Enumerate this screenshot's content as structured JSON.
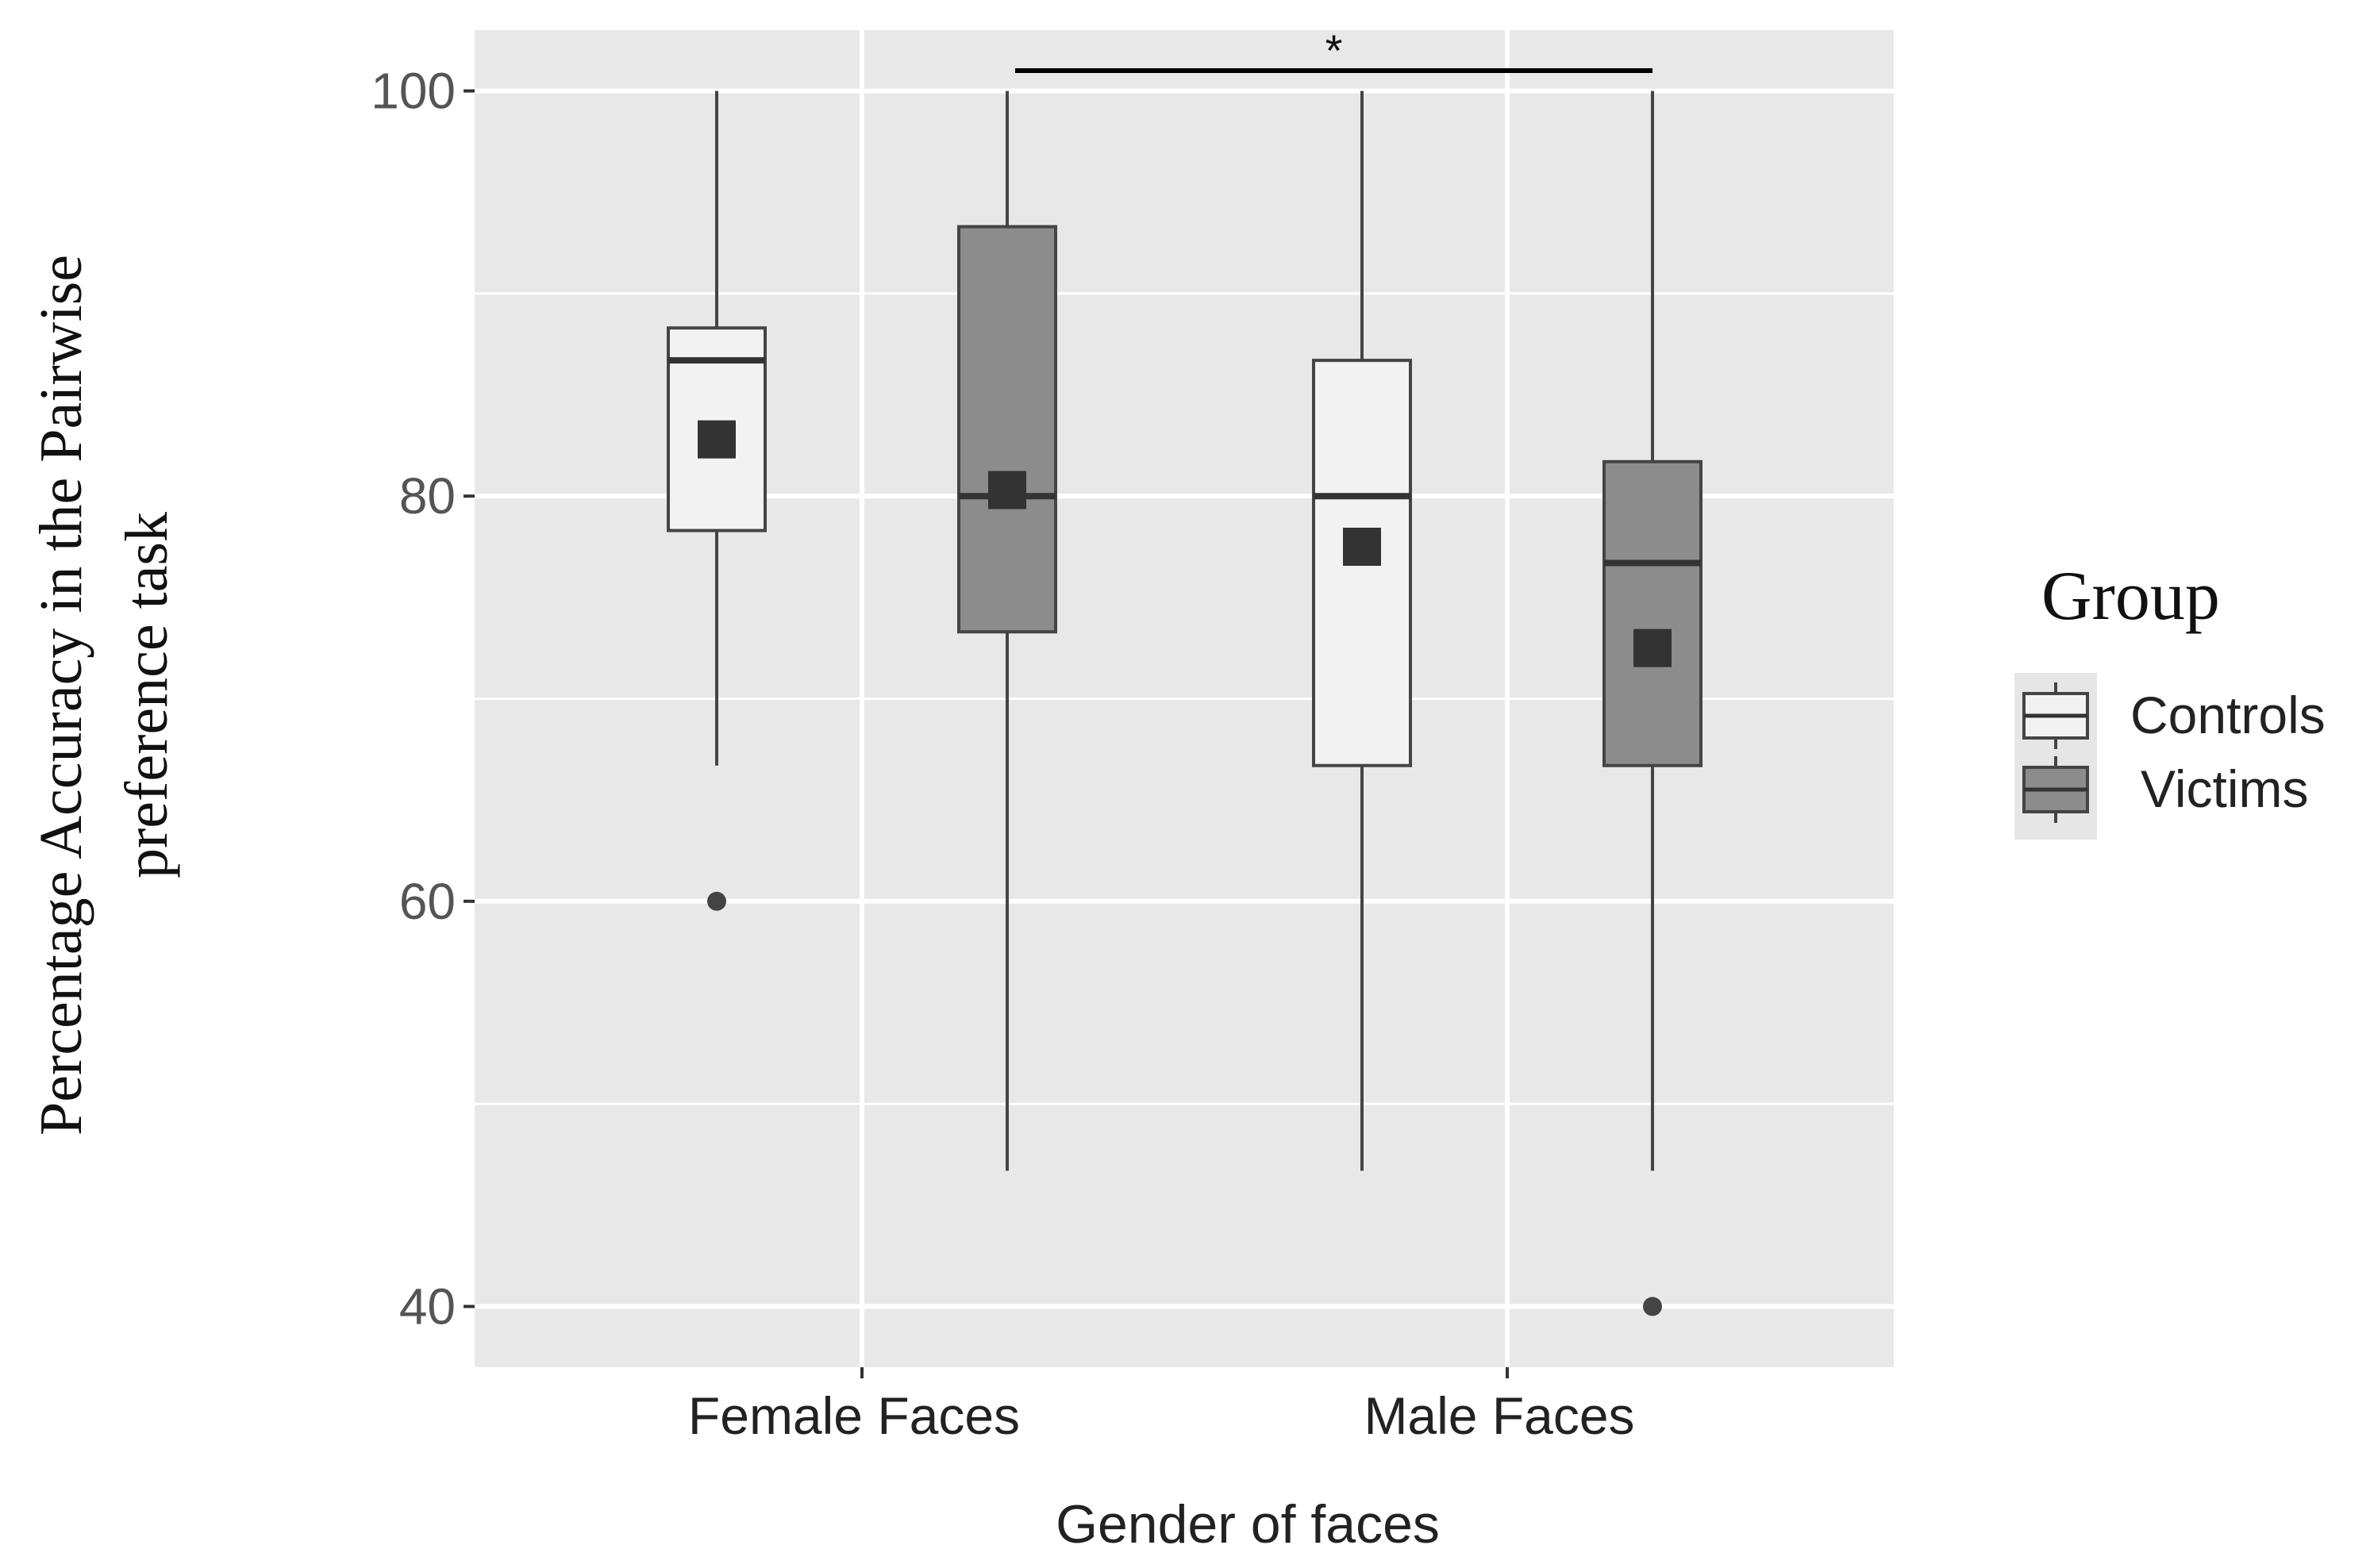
{
  "chart_data": {
    "type": "boxplot",
    "xlabel": "Gender of faces",
    "ylabel_lines": [
      "Percentage Accuracy in the Pairwise",
      "preference task"
    ],
    "ylim": [
      37,
      103
    ],
    "y_ticks": [
      40,
      60,
      80,
      100
    ],
    "y_minor_gridlines": [
      50,
      70,
      90
    ],
    "grid": true,
    "categories": [
      "Female Faces",
      "Male Faces"
    ],
    "legend": {
      "title": "Group",
      "position": "right",
      "entries": [
        "Controls",
        "Victims"
      ]
    },
    "series": [
      {
        "name": "Controls",
        "color": "#f2f2f2",
        "boxes": [
          {
            "category": "Female Faces",
            "whisker_low": 66.7,
            "q1": 78.3,
            "median": 86.7,
            "q3": 88.3,
            "whisker_high": 100,
            "mean": 82.8,
            "outliers": [
              60
            ]
          },
          {
            "category": "Male Faces",
            "whisker_low": 46.7,
            "q1": 66.7,
            "median": 80.0,
            "q3": 86.7,
            "whisker_high": 100,
            "mean": 77.5,
            "outliers": []
          }
        ]
      },
      {
        "name": "Victims",
        "color": "#8c8c8c",
        "boxes": [
          {
            "category": "Female Faces",
            "whisker_low": 46.7,
            "q1": 73.3,
            "median": 80.0,
            "q3": 93.3,
            "whisker_high": 100,
            "mean": 80.3,
            "outliers": []
          },
          {
            "category": "Male Faces",
            "whisker_low": 46.7,
            "q1": 66.7,
            "median": 76.7,
            "q3": 81.7,
            "whisker_high": 100,
            "mean": 72.5,
            "outliers": [
              40
            ]
          }
        ]
      }
    ],
    "annotations": [
      {
        "label": "*",
        "from": {
          "series": "Victims",
          "category": "Female Faces"
        },
        "to": {
          "series": "Victims",
          "category": "Male Faces"
        },
        "y": 101
      }
    ]
  }
}
